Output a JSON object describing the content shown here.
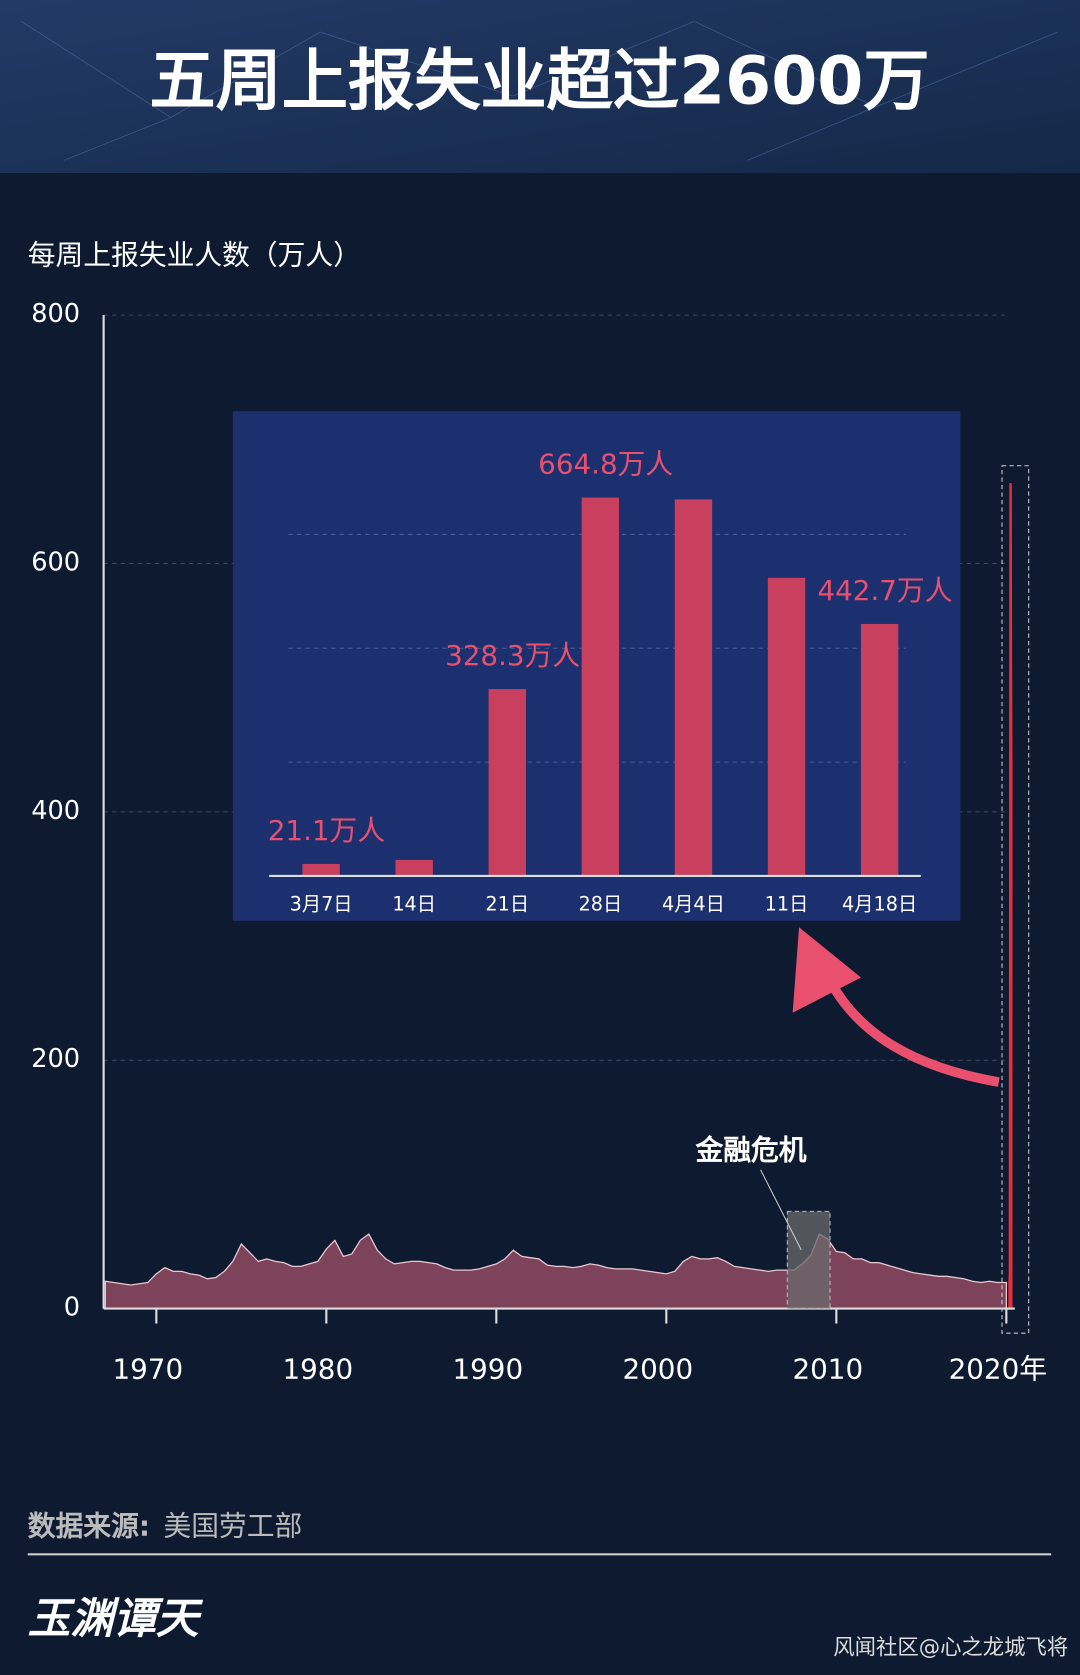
{
  "header": {
    "title": "五周上报失业超过2600万"
  },
  "chart_data": [
    {
      "type": "area",
      "y_label": "每周上报失业人数（万人）",
      "annotation": "金融危机",
      "xlim": [
        1966.9,
        2020.5
      ],
      "xticks": [
        1970,
        1980,
        1990,
        2000,
        2010,
        {
          "value": 2020,
          "label": "2020年"
        }
      ],
      "ylim": [
        0,
        800
      ],
      "yticks": [
        0,
        200,
        400,
        600,
        800
      ],
      "grid": true,
      "series": [
        {
          "color": "#8a4860",
          "x": [
            1967,
            1967.5,
            1968,
            1968.5,
            1969,
            1969.5,
            1970,
            1970.5,
            1971,
            1971.5,
            1972,
            1972.5,
            1973,
            1973.5,
            1974,
            1974.5,
            1975,
            1975.5,
            1976,
            1976.5,
            1977,
            1977.5,
            1978,
            1978.5,
            1979,
            1979.5,
            1980,
            1980.5,
            1981,
            1981.5,
            1982,
            1982.5,
            1983,
            1983.5,
            1984,
            1984.5,
            1985,
            1985.5,
            1986,
            1986.5,
            1987,
            1987.5,
            1988,
            1988.5,
            1989,
            1989.5,
            1990,
            1990.5,
            1991,
            1991.5,
            1992,
            1992.5,
            1993,
            1993.5,
            1994,
            1994.5,
            1995,
            1995.5,
            1996,
            1996.5,
            1997,
            1997.5,
            1998,
            1998.5,
            1999,
            1999.5,
            2000,
            2000.5,
            2001,
            2001.5,
            2002,
            2002.5,
            2003,
            2003.5,
            2004,
            2004.5,
            2005,
            2005.5,
            2006,
            2006.5,
            2007,
            2007.5,
            2008,
            2008.5,
            2009,
            2009.5,
            2010,
            2010.5,
            2011,
            2011.5,
            2012,
            2012.5,
            2013,
            2013.5,
            2014,
            2014.5,
            2015,
            2015.5,
            2016,
            2016.5,
            2017,
            2017.5,
            2018,
            2018.5,
            2019,
            2019.5,
            2020
          ],
          "values": [
            22,
            21,
            20,
            19,
            20,
            21,
            28,
            33,
            30,
            30,
            28,
            27,
            24,
            25,
            30,
            38,
            52,
            45,
            38,
            40,
            38,
            37,
            34,
            34,
            36,
            38,
            48,
            55,
            42,
            44,
            55,
            60,
            47,
            40,
            36,
            37,
            38,
            38,
            37,
            36,
            33,
            31,
            31,
            31,
            32,
            34,
            36,
            40,
            47,
            42,
            41,
            40,
            35,
            34,
            34,
            33,
            34,
            36,
            35,
            33,
            32,
            32,
            32,
            31,
            30,
            29,
            28,
            30,
            38,
            42,
            40,
            40,
            41,
            38,
            34,
            33,
            32,
            31,
            30,
            31,
            31,
            31,
            36,
            43,
            60,
            56,
            46,
            45,
            40,
            40,
            37,
            37,
            35,
            33,
            31,
            29,
            28,
            27,
            26,
            26,
            25,
            24,
            22,
            21,
            22,
            21,
            21
          ]
        },
        {
          "color": "#e8303c",
          "x": [
            2020.18,
            2020.2,
            2020.22,
            2020.24,
            2020.26,
            2020.28,
            2020.3
          ],
          "values": [
            21.1,
            28.2,
            328.3,
            664.8,
            661.5,
            523.8,
            442.7
          ]
        }
      ]
    },
    {
      "type": "bar",
      "categories": [
        "3月7日",
        "14日",
        "21日",
        "28日",
        "4月4日",
        "11日",
        "4月18日"
      ],
      "values": [
        21.1,
        28.2,
        328.3,
        664.8,
        661.5,
        523.8,
        442.7
      ],
      "value_labels": [
        "21.1万人",
        null,
        "328.3万人",
        "664.8万人",
        null,
        null,
        "442.7万人"
      ],
      "color": "#c8405e",
      "ylim": [
        0,
        700
      ],
      "yticks": [
        200,
        400,
        600
      ],
      "grid": true
    }
  ],
  "footer": {
    "source_label": "数据来源:",
    "source": "美国劳工部",
    "logo": "玉渊谭天",
    "watermark": "风闻社区@心之龙城飞将"
  }
}
